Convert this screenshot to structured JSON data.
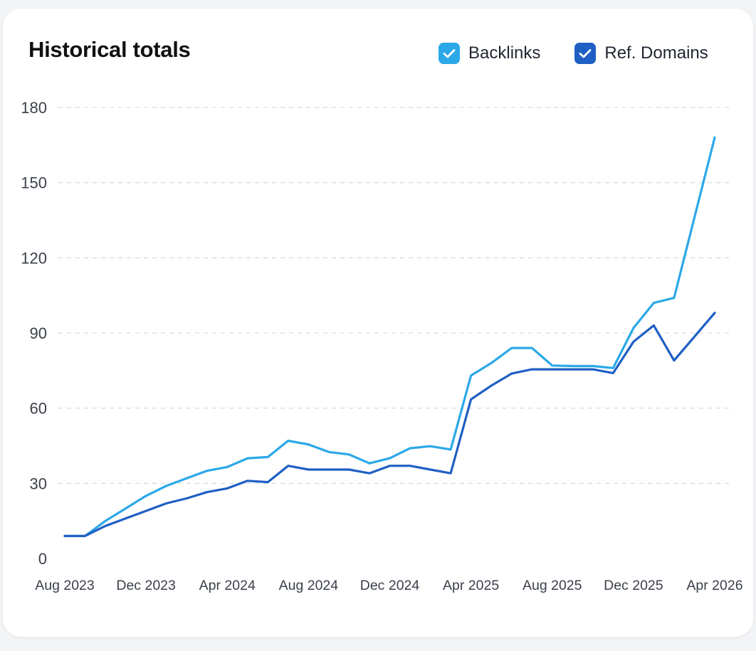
{
  "title": "Historical totals",
  "legend": [
    {
      "label": "Backlinks",
      "color": "#2ba8e8",
      "checked": true
    },
    {
      "label": "Ref. Domains",
      "color": "#1f5fc4",
      "checked": true
    }
  ],
  "chart_data": {
    "type": "line",
    "title": "Historical totals",
    "x_start": "Aug 2023",
    "x_end": "Apr 2026",
    "x_tick_labels": [
      "Aug 2023",
      "Dec 2023",
      "Apr 2024",
      "Aug 2024",
      "Dec 2024",
      "Apr 2025",
      "Aug 2025",
      "Dec 2025",
      "Apr 2026"
    ],
    "y_ticks": [
      0,
      30,
      60,
      90,
      120,
      150,
      180
    ],
    "ylim": [
      0,
      180
    ],
    "grid": true,
    "legend_position": "top-right",
    "series": [
      {
        "name": "Backlinks",
        "color": "#2ba8e8",
        "points": [
          [
            "Aug 2023",
            9
          ],
          [
            "Sep 2023",
            9
          ],
          [
            "Oct 2023",
            15
          ],
          [
            "Nov 2023",
            20
          ],
          [
            "Dec 2023",
            25
          ],
          [
            "Jan 2024",
            29
          ],
          [
            "Feb 2024",
            32
          ],
          [
            "Mar 2024",
            35
          ],
          [
            "Apr 2024",
            36.5
          ],
          [
            "May 2024",
            40
          ],
          [
            "Jun 2024",
            40.5
          ],
          [
            "Jul 2024",
            47
          ],
          [
            "Aug 2024",
            45.5
          ],
          [
            "Sep 2024",
            42.5
          ],
          [
            "Oct 2024",
            41.5
          ],
          [
            "Nov 2024",
            38
          ],
          [
            "Dec 2024",
            40
          ],
          [
            "Jan 2025",
            44
          ],
          [
            "Feb 2025",
            44.8
          ],
          [
            "Mar 2025",
            43.5
          ],
          [
            "Apr 2025",
            73
          ],
          [
            "May 2025",
            78
          ],
          [
            "Jun 2025",
            84
          ],
          [
            "Jul 2025",
            84
          ],
          [
            "Aug 2025",
            77
          ],
          [
            "Sep 2025",
            76.8
          ],
          [
            "Oct 2025",
            76.8
          ],
          [
            "Nov 2025",
            76
          ],
          [
            "Dec 2025",
            92
          ],
          [
            "Jan 2026",
            102
          ],
          [
            "Feb 2026",
            104
          ],
          [
            "Apr 2026",
            168
          ]
        ]
      },
      {
        "name": "Ref. Domains",
        "color": "#1f5fc4",
        "points": [
          [
            "Aug 2023",
            9
          ],
          [
            "Sep 2023",
            9
          ],
          [
            "Oct 2023",
            13
          ],
          [
            "Nov 2023",
            16
          ],
          [
            "Dec 2023",
            19
          ],
          [
            "Jan 2024",
            22
          ],
          [
            "Feb 2024",
            24
          ],
          [
            "Mar 2024",
            26.5
          ],
          [
            "Apr 2024",
            28
          ],
          [
            "May 2024",
            31
          ],
          [
            "Jun 2024",
            30.5
          ],
          [
            "Jul 2024",
            37
          ],
          [
            "Aug 2024",
            35.5
          ],
          [
            "Sep 2024",
            35.5
          ],
          [
            "Oct 2024",
            35.5
          ],
          [
            "Nov 2024",
            34
          ],
          [
            "Dec 2024",
            37
          ],
          [
            "Jan 2025",
            37
          ],
          [
            "Feb 2025",
            35.5
          ],
          [
            "Mar 2025",
            34
          ],
          [
            "Apr 2025",
            63.5
          ],
          [
            "May 2025",
            69
          ],
          [
            "Jun 2025",
            73.8
          ],
          [
            "Jul 2025",
            75.5
          ],
          [
            "Aug 2025",
            75.5
          ],
          [
            "Sep 2025",
            75.5
          ],
          [
            "Oct 2025",
            75.5
          ],
          [
            "Nov 2025",
            74
          ],
          [
            "Dec 2025",
            86.5
          ],
          [
            "Jan 2026",
            93
          ],
          [
            "Feb 2026",
            79
          ],
          [
            "Apr 2026",
            98
          ]
        ]
      }
    ]
  }
}
